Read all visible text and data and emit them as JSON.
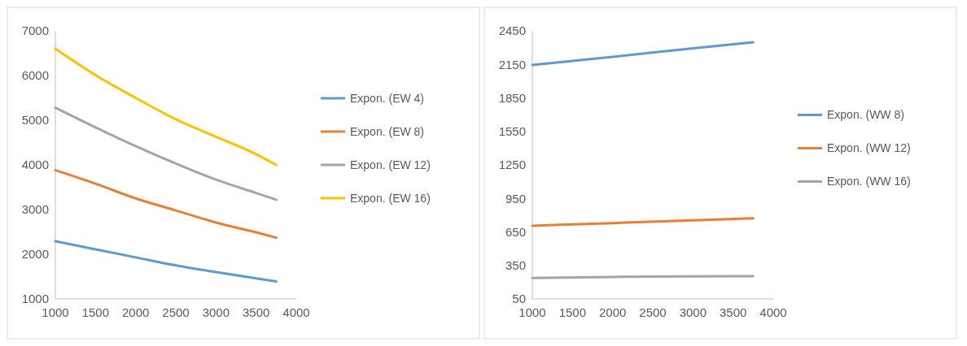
{
  "chart_data": [
    {
      "type": "line",
      "x": [
        1000,
        1500,
        2000,
        2500,
        3000,
        3500,
        3750
      ],
      "xlim": [
        1000,
        4000
      ],
      "xticks": [
        1000,
        1500,
        2000,
        2500,
        3000,
        3500,
        4000
      ],
      "ylim": [
        1000,
        7000
      ],
      "yticks": [
        1000,
        2000,
        3000,
        4000,
        5000,
        6000,
        7000
      ],
      "grid": false,
      "legend": "right",
      "marker": "none",
      "series": [
        {
          "name": "Expon. (EW 4)",
          "color": "#5b9bd5",
          "values": [
            2290,
            2110,
            1930,
            1750,
            1600,
            1460,
            1390
          ]
        },
        {
          "name": "Expon. (EW 8)",
          "color": "#ed7d31",
          "values": [
            3880,
            3580,
            3250,
            2980,
            2710,
            2490,
            2370
          ]
        },
        {
          "name": "Expon. (EW 12)",
          "color": "#a5a5a5",
          "values": [
            5280,
            4840,
            4420,
            4030,
            3670,
            3370,
            3220
          ]
        },
        {
          "name": "Expon. (EW 16)",
          "color": "#ffc000",
          "values": [
            6600,
            6010,
            5500,
            5020,
            4630,
            4240,
            4000
          ]
        }
      ]
    },
    {
      "type": "line",
      "x": [
        1000,
        2000,
        3000,
        3750
      ],
      "xlim": [
        1000,
        4000
      ],
      "xticks": [
        1000,
        1500,
        2000,
        2500,
        3000,
        3500,
        4000
      ],
      "ylim": [
        50,
        2450
      ],
      "yticks": [
        50,
        350,
        650,
        950,
        1250,
        1550,
        1850,
        2150,
        2450
      ],
      "grid": false,
      "legend": "right",
      "marker": "none",
      "series": [
        {
          "name": "Expon. (WW 8)",
          "color": "#5b9bd5",
          "values": [
            2145,
            2217,
            2294,
            2349
          ]
        },
        {
          "name": "Expon. (WW 12)",
          "color": "#ed7d31",
          "values": [
            705,
            729,
            753,
            772
          ]
        },
        {
          "name": "Expon. (WW 16)",
          "color": "#a5a5a5",
          "values": [
            237,
            247,
            251,
            254
          ]
        }
      ]
    }
  ]
}
